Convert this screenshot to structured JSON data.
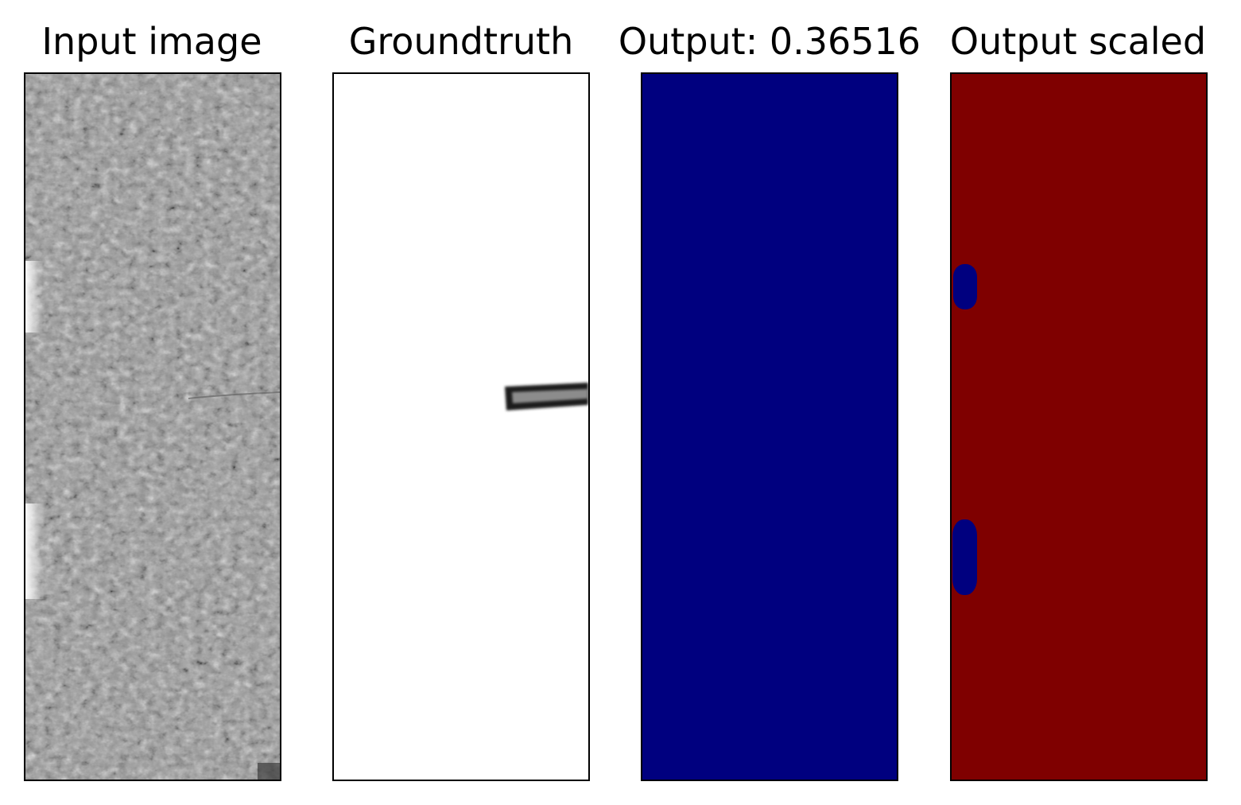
{
  "figure": {
    "panels": [
      {
        "id": "input",
        "title": "Input image",
        "fill": "#9a9a9a"
      },
      {
        "id": "groundtruth",
        "title": "Groundtruth",
        "fill": "#ffffff"
      },
      {
        "id": "output",
        "title": "Output: 0.36516",
        "fill": "#00007f"
      },
      {
        "id": "output-scaled",
        "title": "Output scaled",
        "fill": "#7f0000"
      }
    ]
  },
  "colors": {
    "background": "#ffffff",
    "frame": "#000000",
    "navy": "#00007f",
    "dark_red": "#7f0000",
    "groundtruth_mark": "#1a1a1a"
  }
}
